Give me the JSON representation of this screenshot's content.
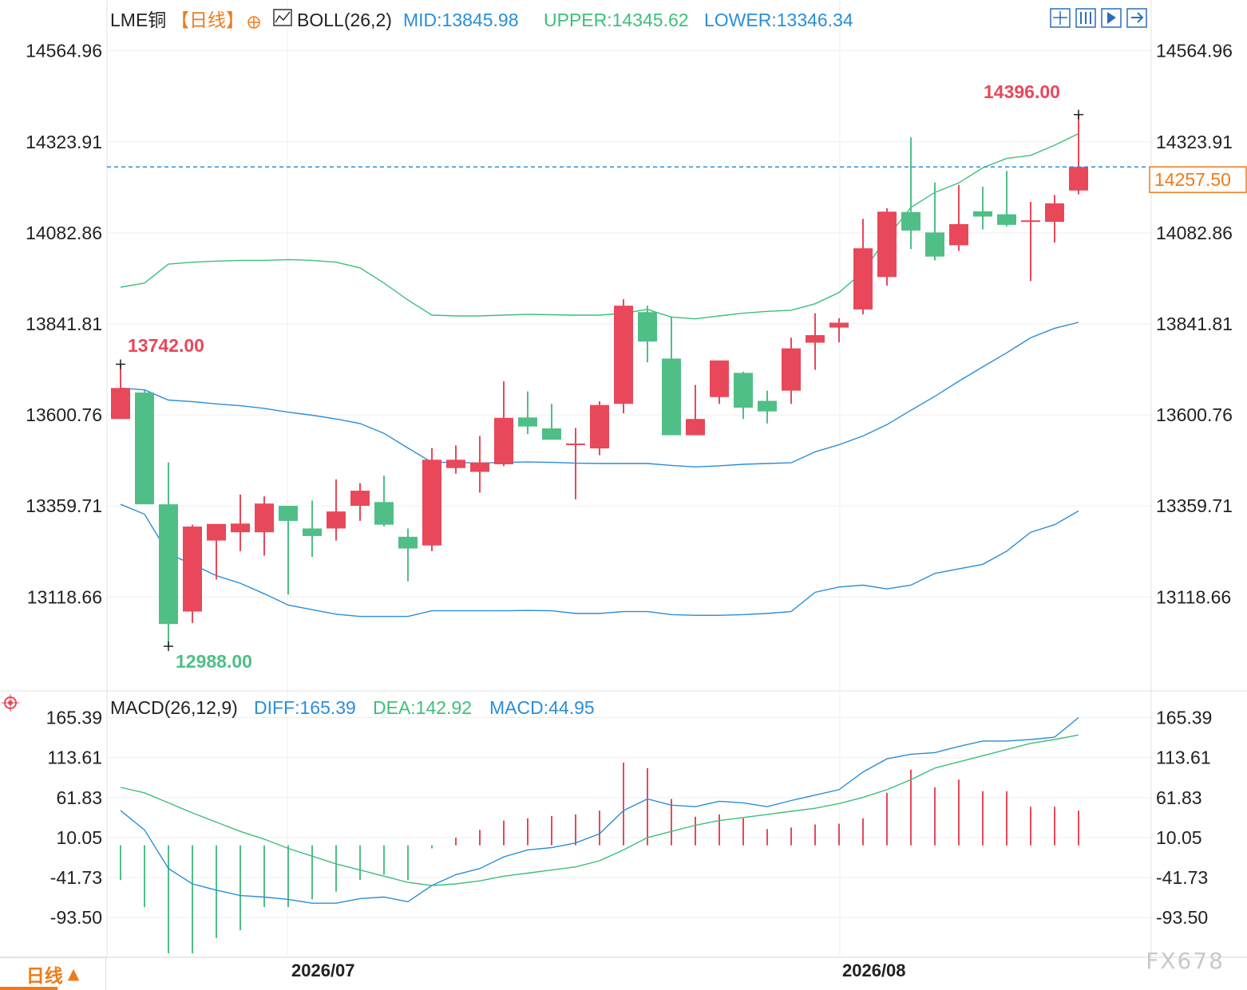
{
  "header": {
    "symbol": "LME铜",
    "period": "【日线】",
    "indicator": "BOLL(26,2)",
    "mid": "MID:13845.98",
    "upper": "UPPER:14345.62",
    "lower": "LOWER:13346.34"
  },
  "macd_header": {
    "name": "MACD(26,12,9)",
    "diff": "DIFF:165.39",
    "dea": "DEA:142.92",
    "macd": "MACD:44.95"
  },
  "annotations": {
    "high_label": "14396.00",
    "left_high_label": "13742.00",
    "low_label": "12988.00",
    "last_price": "14257.50"
  },
  "period_tab": {
    "label": "日线",
    "arrow": "▲"
  },
  "watermark": "FX678",
  "colors": {
    "up": "#e8485a",
    "down": "#4fbf87",
    "upper_band": "#3dbf7a",
    "mid_band": "#2a8ed8",
    "lower_band": "#2a8ed8",
    "diff": "#2a8ed8",
    "dea": "#3dbf7a",
    "last_price": "#f07a1a",
    "label_up": "#e8485a",
    "label_down": "#4fbf87"
  },
  "chart_data": [
    {
      "type": "candlestick",
      "title": "",
      "yticks": [
        "14564.96",
        "14323.91",
        "14082.86",
        "13841.81",
        "13600.76",
        "13359.71",
        "13118.66"
      ],
      "ylim": [
        12870,
        14615
      ],
      "x_dates": [
        "2026/07",
        "2026/08"
      ],
      "candles": [
        {
          "o": 13590,
          "h": 13735,
          "l": 13590,
          "c": 13672
        },
        {
          "o": 13660,
          "h": 13665,
          "l": 13364,
          "c": 13364
        },
        {
          "o": 13364,
          "h": 13475,
          "l": 12988,
          "c": 13047
        },
        {
          "o": 13080,
          "h": 13310,
          "l": 13050,
          "c": 13305
        },
        {
          "o": 13268,
          "h": 13310,
          "l": 13165,
          "c": 13312
        },
        {
          "o": 13290,
          "h": 13390,
          "l": 13240,
          "c": 13313
        },
        {
          "o": 13290,
          "h": 13385,
          "l": 13228,
          "c": 13366
        },
        {
          "o": 13360,
          "h": 13360,
          "l": 13125,
          "c": 13320
        },
        {
          "o": 13300,
          "h": 13374,
          "l": 13225,
          "c": 13280
        },
        {
          "o": 13300,
          "h": 13430,
          "l": 13268,
          "c": 13345
        },
        {
          "o": 13360,
          "h": 13420,
          "l": 13320,
          "c": 13400
        },
        {
          "o": 13370,
          "h": 13440,
          "l": 13305,
          "c": 13310
        },
        {
          "o": 13278,
          "h": 13300,
          "l": 13160,
          "c": 13247
        },
        {
          "o": 13255,
          "h": 13513,
          "l": 13240,
          "c": 13482
        },
        {
          "o": 13460,
          "h": 13520,
          "l": 13445,
          "c": 13482
        },
        {
          "o": 13450,
          "h": 13545,
          "l": 13395,
          "c": 13475
        },
        {
          "o": 13470,
          "h": 13690,
          "l": 13465,
          "c": 13593
        },
        {
          "o": 13594,
          "h": 13663,
          "l": 13550,
          "c": 13570
        },
        {
          "o": 13565,
          "h": 13630,
          "l": 13540,
          "c": 13535
        },
        {
          "o": 13525,
          "h": 13566,
          "l": 13377,
          "c": 13525
        },
        {
          "o": 13512,
          "h": 13637,
          "l": 13494,
          "c": 13627
        },
        {
          "o": 13630,
          "h": 13907,
          "l": 13605,
          "c": 13890
        },
        {
          "o": 13873,
          "h": 13890,
          "l": 13740,
          "c": 13795
        },
        {
          "o": 13750,
          "h": 13862,
          "l": 13547,
          "c": 13547
        },
        {
          "o": 13547,
          "h": 13680,
          "l": 13547,
          "c": 13590
        },
        {
          "o": 13648,
          "h": 13732,
          "l": 13630,
          "c": 13745
        },
        {
          "o": 13712,
          "h": 13715,
          "l": 13590,
          "c": 13620
        },
        {
          "o": 13638,
          "h": 13665,
          "l": 13578,
          "c": 13610
        },
        {
          "o": 13665,
          "h": 13805,
          "l": 13630,
          "c": 13777
        },
        {
          "o": 13792,
          "h": 13870,
          "l": 13720,
          "c": 13812
        },
        {
          "o": 13832,
          "h": 13857,
          "l": 13793,
          "c": 13845
        },
        {
          "o": 13880,
          "h": 14120,
          "l": 13867,
          "c": 14042
        },
        {
          "o": 13966,
          "h": 14148,
          "l": 13943,
          "c": 14139
        },
        {
          "o": 14138,
          "h": 14336,
          "l": 14040,
          "c": 14089
        },
        {
          "o": 14084,
          "h": 14216,
          "l": 14010,
          "c": 14020
        },
        {
          "o": 14050,
          "h": 14210,
          "l": 14035,
          "c": 14106
        },
        {
          "o": 14140,
          "h": 14205,
          "l": 14092,
          "c": 14126
        },
        {
          "o": 14132,
          "h": 14247,
          "l": 14100,
          "c": 14104
        },
        {
          "o": 14112,
          "h": 14165,
          "l": 13955,
          "c": 14116
        },
        {
          "o": 14112,
          "h": 14183,
          "l": 14057,
          "c": 14161
        },
        {
          "o": 14195,
          "h": 14396,
          "l": 14185,
          "c": 14257.5
        }
      ],
      "upper_band": [
        13939,
        13950,
        14000,
        14005,
        14008,
        14010,
        14010,
        14012,
        14010,
        14005,
        13990,
        13950,
        13905,
        13865,
        13863,
        13863,
        13865,
        13867,
        13866,
        13865,
        13865,
        13870,
        13880,
        13860,
        13855,
        13863,
        13870,
        13875,
        13878,
        13895,
        13925,
        13980,
        14070,
        14150,
        14190,
        14215,
        14255,
        14280,
        14288,
        14315,
        14345.62
      ],
      "mid_band": [
        13672,
        13667,
        13640,
        13636,
        13630,
        13625,
        13618,
        13608,
        13600,
        13590,
        13578,
        13552,
        13513,
        13475,
        13475,
        13473,
        13475,
        13476,
        13475,
        13473,
        13472,
        13472,
        13472,
        13467,
        13463,
        13466,
        13470,
        13472,
        13474,
        13503,
        13522,
        13545,
        13575,
        13613,
        13650,
        13690,
        13728,
        13765,
        13805,
        13830,
        13845.98
      ],
      "lower_band": [
        13364,
        13338,
        13233,
        13205,
        13175,
        13155,
        13127,
        13097,
        13085,
        13073,
        13067,
        13067,
        13067,
        13082,
        13082,
        13082,
        13082,
        13083,
        13082,
        13075,
        13075,
        13080,
        13080,
        13072,
        13070,
        13070,
        13072,
        13075,
        13080,
        13131,
        13145,
        13150,
        13140,
        13150,
        13181,
        13193,
        13205,
        13240,
        13290,
        13310,
        13346.34
      ]
    },
    {
      "type": "macd",
      "title": "",
      "yticks": [
        "165.39",
        "113.61",
        "61.83",
        "10.05",
        "-41.73",
        "-93.50"
      ],
      "ylim": [
        -145,
        200
      ],
      "diff": [
        45,
        20,
        -30,
        -50,
        -58,
        -65,
        -67,
        -70,
        -75,
        -75,
        -69,
        -67,
        -73,
        -52,
        -38,
        -30,
        -15,
        -6,
        -3,
        3,
        15,
        45,
        60,
        52,
        50,
        57,
        55,
        50,
        58,
        65,
        72,
        95,
        112,
        118,
        120,
        128,
        135,
        135,
        137,
        140,
        165.39
      ],
      "dea": [
        75,
        68,
        55,
        42,
        30,
        18,
        8,
        -4,
        -14,
        -24,
        -32,
        -40,
        -48,
        -52,
        -50,
        -46,
        -40,
        -36,
        -32,
        -28,
        -20,
        -6,
        10,
        18,
        26,
        32,
        36,
        40,
        44,
        48,
        54,
        62,
        72,
        85,
        100,
        108,
        116,
        124,
        132,
        137,
        142.92
      ],
      "macd": [
        -45,
        -80,
        -140,
        -140,
        -120,
        -110,
        -80,
        -80,
        -70,
        -60,
        -45,
        -38,
        -45,
        -4,
        10,
        20,
        32,
        35,
        38,
        40,
        45,
        107,
        100,
        60,
        37,
        40,
        35,
        21,
        23,
        27,
        28,
        35,
        68,
        98,
        75,
        85,
        70,
        70,
        50,
        50,
        44.95
      ]
    }
  ]
}
